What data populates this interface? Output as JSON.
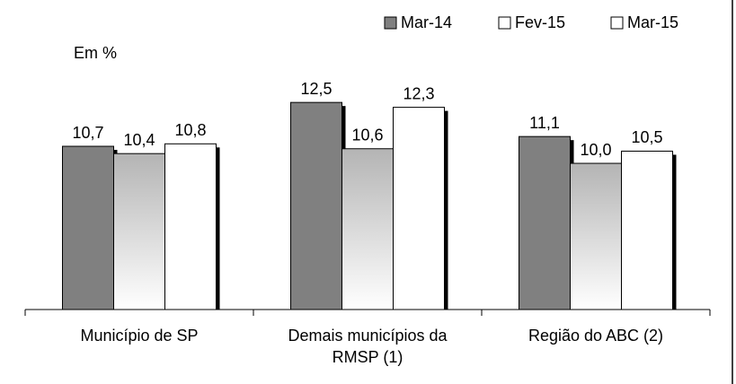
{
  "chart_data": {
    "type": "bar",
    "annotation": "Em %",
    "categories": [
      "Município de SP",
      "Demais municípios da RMSP (1)",
      "Região do ABC (2)"
    ],
    "series": [
      {
        "name": "Mar-14",
        "color": "#808080",
        "values": [
          10.7,
          12.5,
          11.1
        ],
        "value_labels": [
          "10,7",
          "12,5",
          "11,1"
        ]
      },
      {
        "name": "Fev-15",
        "color": "#b4b4b4",
        "gradient": true,
        "values": [
          10.4,
          10.6,
          10.0
        ],
        "value_labels": [
          "10,4",
          "10,6",
          "10,0"
        ]
      },
      {
        "name": "Mar-15",
        "color": "#ffffff",
        "values": [
          10.8,
          12.3,
          10.5
        ],
        "value_labels": [
          "10,8",
          "12,3",
          "10,5"
        ]
      }
    ],
    "ylim": [
      4,
      13.5
    ],
    "legend": "top-right"
  }
}
